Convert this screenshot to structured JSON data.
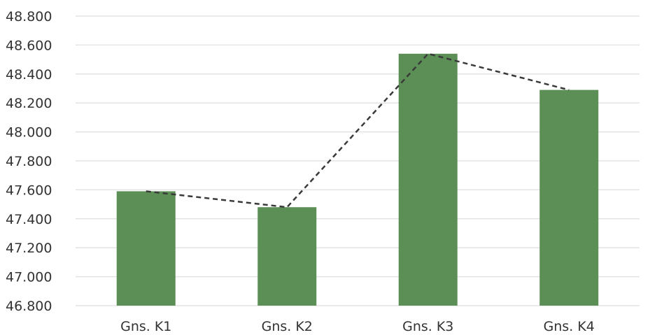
{
  "chart_data": {
    "type": "bar",
    "categories": [
      "Gns. K1",
      "Gns. K2",
      "Gns. K3",
      "Gns. K4"
    ],
    "values": [
      47.59,
      47.48,
      48.54,
      48.29
    ],
    "ylim": [
      46.8,
      48.8
    ],
    "yticks": [
      46.8,
      47.0,
      47.2,
      47.4,
      47.6,
      47.8,
      48.0,
      48.2,
      48.4,
      48.6,
      48.8
    ],
    "ytick_labels": [
      "46.800",
      "47.000",
      "47.200",
      "47.400",
      "47.600",
      "47.800",
      "48.000",
      "48.200",
      "48.400",
      "48.600",
      "48.800"
    ],
    "grid": true,
    "trendline": "dashed line connecting bar tops",
    "colors": {
      "bar": "#5b8f55",
      "trendline": "#3a3a3a",
      "grid": "#e3e3e3"
    }
  }
}
